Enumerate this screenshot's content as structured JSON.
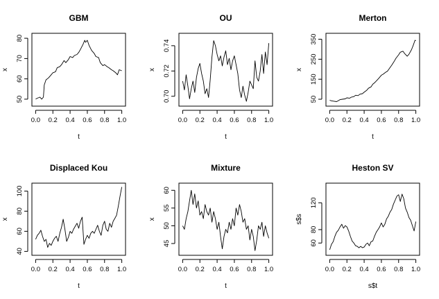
{
  "chart_data": [
    {
      "type": "line",
      "title": "GBM",
      "xlabel": "t",
      "ylabel": "x",
      "xlim": [
        0,
        1
      ],
      "ylim": [
        48,
        81
      ],
      "xticks": [
        "0.0",
        "0.2",
        "0.4",
        "0.6",
        "0.8",
        "1.0"
      ],
      "yticks": [
        "50",
        "60",
        "70",
        "80"
      ],
      "grid": false,
      "series": [
        {
          "x": [
            0.0,
            0.02,
            0.05,
            0.07,
            0.09,
            0.1,
            0.12,
            0.15,
            0.18,
            0.2,
            0.23,
            0.25,
            0.28,
            0.3,
            0.33,
            0.35,
            0.38,
            0.4,
            0.43,
            0.45,
            0.48,
            0.5,
            0.52,
            0.55,
            0.57,
            0.58,
            0.6,
            0.62,
            0.65,
            0.68,
            0.7,
            0.73,
            0.75,
            0.78,
            0.8,
            0.83,
            0.85,
            0.88,
            0.9,
            0.93,
            0.95,
            0.97,
            1.0
          ],
          "y": [
            50,
            50.5,
            51,
            50,
            51,
            57,
            59.5,
            60.5,
            62,
            63,
            63.5,
            65.5,
            66,
            67,
            69,
            68,
            69.5,
            71,
            70.5,
            71.5,
            72,
            73,
            74.5,
            77,
            79,
            78,
            79,
            76.5,
            74,
            72.5,
            71,
            70.5,
            68,
            66.5,
            67,
            66,
            65.5,
            64.5,
            64,
            63,
            62,
            64.5,
            64
          ]
        }
      ]
    },
    {
      "type": "line",
      "title": "OU",
      "xlabel": "t",
      "ylabel": "x",
      "xlim": [
        0,
        1
      ],
      "ylim": [
        0.6945,
        0.7475
      ],
      "xticks": [
        "0.0",
        "0.2",
        "0.4",
        "0.6",
        "0.8",
        "1.0"
      ],
      "yticks": [
        "0.70",
        "0.72",
        "0.74"
      ],
      "grid": false,
      "series": [
        {
          "x": [
            0.0,
            0.02,
            0.04,
            0.06,
            0.08,
            0.1,
            0.12,
            0.14,
            0.16,
            0.18,
            0.2,
            0.22,
            0.24,
            0.26,
            0.28,
            0.3,
            0.32,
            0.34,
            0.36,
            0.38,
            0.4,
            0.42,
            0.44,
            0.46,
            0.48,
            0.5,
            0.52,
            0.54,
            0.56,
            0.58,
            0.6,
            0.62,
            0.64,
            0.66,
            0.68,
            0.7,
            0.72,
            0.74,
            0.76,
            0.78,
            0.8,
            0.82,
            0.84,
            0.86,
            0.88,
            0.9,
            0.92,
            0.94,
            0.96,
            0.98,
            1.0
          ],
          "y": [
            0.712,
            0.705,
            0.717,
            0.708,
            0.698,
            0.706,
            0.712,
            0.703,
            0.715,
            0.722,
            0.726,
            0.718,
            0.712,
            0.702,
            0.706,
            0.699,
            0.713,
            0.731,
            0.744,
            0.74,
            0.733,
            0.728,
            0.732,
            0.724,
            0.731,
            0.736,
            0.725,
            0.73,
            0.721,
            0.728,
            0.732,
            0.725,
            0.718,
            0.705,
            0.699,
            0.708,
            0.701,
            0.696,
            0.703,
            0.712,
            0.709,
            0.706,
            0.728,
            0.715,
            0.712,
            0.72,
            0.733,
            0.718,
            0.735,
            0.725,
            0.742
          ]
        }
      ]
    },
    {
      "type": "line",
      "title": "Merton",
      "xlabel": "t",
      "ylabel": "x",
      "xlim": [
        0,
        1
      ],
      "ylim": [
        30,
        365
      ],
      "xticks": [
        "0.0",
        "0.2",
        "0.4",
        "0.6",
        "0.8",
        "1.0"
      ],
      "yticks": [
        "50",
        "150",
        "250",
        "350"
      ],
      "grid": false,
      "series": [
        {
          "x": [
            0.0,
            0.02,
            0.05,
            0.08,
            0.1,
            0.12,
            0.15,
            0.18,
            0.2,
            0.23,
            0.25,
            0.28,
            0.3,
            0.33,
            0.35,
            0.38,
            0.4,
            0.43,
            0.45,
            0.48,
            0.5,
            0.52,
            0.55,
            0.57,
            0.6,
            0.62,
            0.65,
            0.67,
            0.7,
            0.72,
            0.75,
            0.77,
            0.8,
            0.82,
            0.85,
            0.87,
            0.9,
            0.92,
            0.95,
            0.97,
            0.99,
            1.0
          ],
          "y": [
            45,
            42,
            40,
            38,
            43,
            48,
            50,
            52,
            57,
            55,
            60,
            63,
            70,
            68,
            75,
            78,
            85,
            95,
            105,
            112,
            125,
            132,
            145,
            155,
            170,
            175,
            185,
            190,
            208,
            220,
            240,
            255,
            272,
            285,
            290,
            278,
            265,
            275,
            298,
            320,
            345,
            342
          ]
        }
      ]
    },
    {
      "type": "line",
      "title": "Displaced Kou",
      "xlabel": "t",
      "ylabel": "x",
      "xlim": [
        0,
        1
      ],
      "ylim": [
        39,
        105
      ],
      "xticks": [
        "0.0",
        "0.2",
        "0.4",
        "0.6",
        "0.8",
        "1.0"
      ],
      "yticks": [
        "40",
        "60",
        "80",
        "100"
      ],
      "grid": false,
      "series": [
        {
          "x": [
            0.0,
            0.02,
            0.04,
            0.06,
            0.08,
            0.1,
            0.12,
            0.14,
            0.16,
            0.18,
            0.2,
            0.22,
            0.24,
            0.26,
            0.28,
            0.3,
            0.32,
            0.34,
            0.36,
            0.38,
            0.4,
            0.42,
            0.44,
            0.46,
            0.48,
            0.5,
            0.52,
            0.54,
            0.56,
            0.58,
            0.6,
            0.62,
            0.64,
            0.66,
            0.68,
            0.7,
            0.72,
            0.74,
            0.76,
            0.78,
            0.8,
            0.82,
            0.84,
            0.86,
            0.88,
            0.9,
            0.92,
            0.94,
            0.96,
            0.98,
            1.0
          ],
          "y": [
            52,
            56,
            58,
            61,
            55,
            50,
            52,
            44,
            48,
            46,
            50,
            53,
            55,
            50,
            58,
            64,
            72,
            62,
            50,
            54,
            60,
            58,
            62,
            65,
            68,
            63,
            70,
            74,
            47,
            52,
            56,
            53,
            58,
            60,
            58,
            62,
            66,
            60,
            56,
            66,
            70,
            62,
            60,
            68,
            64,
            70,
            73,
            76,
            85,
            95,
            104
          ]
        }
      ]
    },
    {
      "type": "line",
      "title": "Mixture",
      "xlabel": "t",
      "ylabel": "x",
      "xlim": [
        0,
        1
      ],
      "ylim": [
        42.5,
        61.2
      ],
      "xticks": [
        "0.0",
        "0.2",
        "0.4",
        "0.6",
        "0.8",
        "1.0"
      ],
      "yticks": [
        "45",
        "50",
        "55",
        "60"
      ],
      "grid": false,
      "series": [
        {
          "x": [
            0.0,
            0.02,
            0.04,
            0.06,
            0.08,
            0.1,
            0.12,
            0.14,
            0.16,
            0.18,
            0.2,
            0.22,
            0.24,
            0.26,
            0.28,
            0.3,
            0.32,
            0.34,
            0.36,
            0.38,
            0.4,
            0.42,
            0.44,
            0.46,
            0.48,
            0.5,
            0.52,
            0.54,
            0.56,
            0.58,
            0.6,
            0.62,
            0.64,
            0.66,
            0.68,
            0.7,
            0.72,
            0.74,
            0.76,
            0.78,
            0.8,
            0.82,
            0.84,
            0.86,
            0.88,
            0.9,
            0.92,
            0.94,
            0.96,
            0.98,
            1.0
          ],
          "y": [
            50,
            49,
            52,
            54,
            57,
            60,
            56,
            59,
            55,
            57,
            53,
            54,
            52,
            56,
            54,
            53,
            55,
            51,
            54,
            52,
            49,
            51,
            47,
            43.5,
            47,
            49,
            48,
            51,
            49,
            52,
            50,
            55,
            53,
            56,
            54,
            51,
            52,
            49,
            50,
            46,
            49,
            47,
            43,
            46,
            50,
            49,
            51,
            47,
            50,
            48,
            46.5
          ]
        }
      ]
    },
    {
      "type": "line",
      "title": "Heston SV",
      "xlabel": "s$t",
      "ylabel": "s$s",
      "xlim": [
        0,
        1
      ],
      "ylim": [
        46,
        145
      ],
      "xticks": [
        "0.0",
        "0.2",
        "0.4",
        "0.6",
        "0.8",
        "1.0"
      ],
      "yticks": [
        "60",
        "80",
        "120"
      ],
      "grid": false,
      "series": [
        {
          "x": [
            0.0,
            0.02,
            0.04,
            0.06,
            0.08,
            0.1,
            0.12,
            0.14,
            0.16,
            0.18,
            0.2,
            0.22,
            0.24,
            0.26,
            0.28,
            0.3,
            0.32,
            0.34,
            0.36,
            0.38,
            0.4,
            0.42,
            0.44,
            0.46,
            0.48,
            0.5,
            0.52,
            0.54,
            0.56,
            0.58,
            0.6,
            0.62,
            0.64,
            0.66,
            0.68,
            0.7,
            0.72,
            0.74,
            0.76,
            0.78,
            0.8,
            0.82,
            0.84,
            0.86,
            0.88,
            0.9,
            0.92,
            0.94,
            0.96,
            0.98,
            1.0
          ],
          "y": [
            50,
            58,
            62,
            70,
            76,
            79,
            84,
            88,
            82,
            86,
            84,
            78,
            70,
            63,
            60,
            56,
            55,
            53,
            55,
            53,
            54,
            58,
            60,
            56,
            62,
            63,
            70,
            76,
            80,
            84,
            90,
            84,
            88,
            96,
            100,
            106,
            110,
            118,
            124,
            130,
            132,
            122,
            133,
            126,
            112,
            106,
            98,
            94,
            86,
            78,
            92
          ]
        }
      ]
    }
  ]
}
